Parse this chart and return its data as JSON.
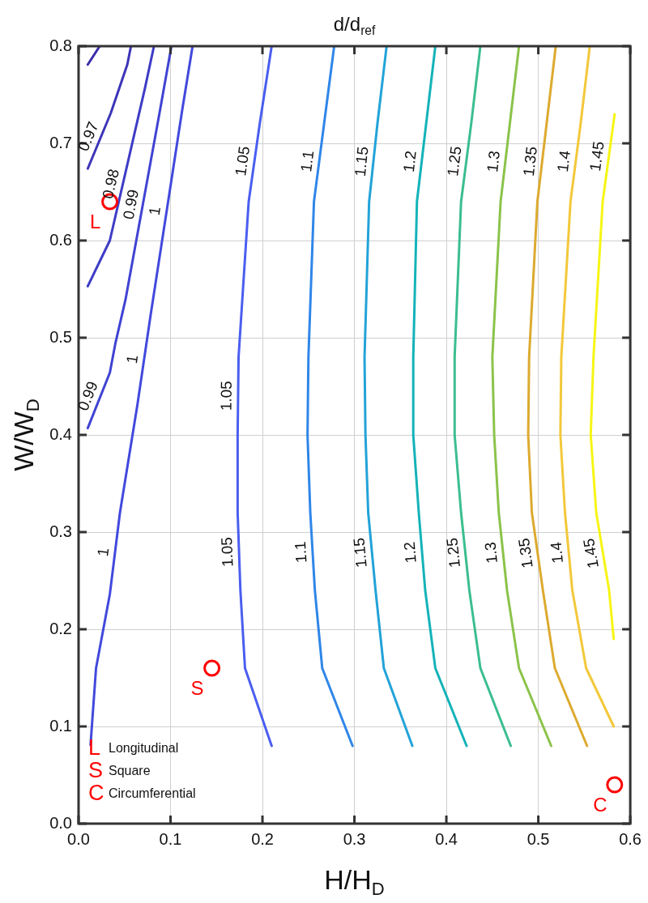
{
  "chart_data": {
    "type": "line",
    "title": "d/d$_{ref}$",
    "xlabel": "H/H$_{D}$",
    "ylabel": "W/W$_{D}$",
    "xlim": [
      0,
      0.6
    ],
    "xticks": [
      {
        "value": 0,
        "label": "0.0"
      },
      0.1,
      0.2,
      0.3,
      0.4,
      0.5,
      0.6
    ],
    "ylim": [
      0,
      0.8
    ],
    "yticks": [
      {
        "value": 0,
        "label": "0.0"
      },
      0.1,
      0.2,
      0.3,
      0.4,
      0.5,
      0.6,
      0.7,
      0.8
    ],
    "grid": true,
    "legend": "bottom left",
    "annotations": [
      "Longitudinal",
      "Square",
      "Circumferential"
    ],
    "series": [
      {
        "color": "#3b2ea8",
        "x": [
          0.01,
          0.023
        ],
        "values": [
          0.781,
          0.8
        ]
      },
      {
        "name": "0.97",
        "color": "#3d35b8",
        "x": [
          0.01,
          0.035,
          0.053,
          0.057
        ],
        "values": [
          0.674,
          0.731,
          0.781,
          0.8
        ]
      },
      {
        "name": "0.98",
        "color": "#3e3cc6",
        "x": [
          0.01,
          0.034,
          0.061,
          0.072,
          0.082
        ],
        "values": [
          0.553,
          0.6,
          0.711,
          0.756,
          0.8
        ]
      },
      {
        "name": "0.99",
        "color": "#4043d3",
        "x": [
          0.01,
          0.034,
          0.04,
          0.051,
          0.088,
          0.101
        ],
        "values": [
          0.407,
          0.464,
          0.494,
          0.539,
          0.731,
          0.8
        ]
      },
      {
        "name": "1",
        "color": "#4249dd",
        "x": [
          0.013,
          0.019,
          0.034,
          0.045,
          0.064,
          0.078,
          0.113,
          0.124
        ],
        "values": [
          0.081,
          0.16,
          0.236,
          0.32,
          0.431,
          0.521,
          0.736,
          0.8
        ]
      },
      {
        "name": "1.05",
        "color": "#4a5ef0",
        "x": [
          0.21,
          0.181,
          0.176,
          0.173,
          0.173,
          0.174,
          0.185,
          0.197,
          0.21
        ],
        "values": [
          0.08,
          0.16,
          0.24,
          0.32,
          0.4,
          0.48,
          0.64,
          0.72,
          0.8
        ]
      },
      {
        "name": "1.1",
        "color": "#2f86e8",
        "x": [
          0.298,
          0.265,
          0.257,
          0.252,
          0.249,
          0.25,
          0.256,
          0.267,
          0.278
        ],
        "values": [
          0.08,
          0.16,
          0.24,
          0.32,
          0.4,
          0.48,
          0.64,
          0.72,
          0.8
        ]
      },
      {
        "name": "1.15",
        "color": "#22a3d8",
        "x": [
          0.363,
          0.332,
          0.323,
          0.315,
          0.312,
          0.311,
          0.316,
          0.325,
          0.335
        ],
        "values": [
          0.08,
          0.16,
          0.24,
          0.32,
          0.4,
          0.48,
          0.64,
          0.72,
          0.8
        ]
      },
      {
        "name": "1.2",
        "color": "#13b3b9",
        "x": [
          0.422,
          0.388,
          0.377,
          0.37,
          0.364,
          0.364,
          0.368,
          0.378,
          0.388
        ],
        "values": [
          0.08,
          0.16,
          0.24,
          0.32,
          0.4,
          0.48,
          0.64,
          0.72,
          0.8
        ]
      },
      {
        "name": "1.25",
        "color": "#3bbe8f",
        "x": [
          0.47,
          0.437,
          0.425,
          0.416,
          0.409,
          0.409,
          0.416,
          0.427,
          0.437
        ],
        "values": [
          0.08,
          0.16,
          0.24,
          0.32,
          0.4,
          0.48,
          0.64,
          0.72,
          0.8
        ]
      },
      {
        "name": "1.3",
        "color": "#8bc34a",
        "x": [
          0.514,
          0.479,
          0.466,
          0.457,
          0.452,
          0.45,
          0.459,
          0.469,
          0.479
        ],
        "values": [
          0.08,
          0.16,
          0.24,
          0.32,
          0.4,
          0.48,
          0.64,
          0.72,
          0.8
        ]
      },
      {
        "name": "1.35",
        "color": "#dcaa2f",
        "x": [
          0.553,
          0.518,
          0.505,
          0.493,
          0.489,
          0.49,
          0.499,
          0.509,
          0.519
        ],
        "values": [
          0.08,
          0.16,
          0.24,
          0.32,
          0.4,
          0.48,
          0.64,
          0.72,
          0.8
        ]
      },
      {
        "name": "1.4",
        "color": "#f3c83a",
        "x": [
          0.582,
          0.552,
          0.537,
          0.529,
          0.524,
          0.525,
          0.535,
          0.546,
          0.556
        ],
        "values": [
          0.1,
          0.16,
          0.24,
          0.32,
          0.4,
          0.48,
          0.64,
          0.72,
          0.8
        ]
      },
      {
        "name": "1.45",
        "color": "#f6f514",
        "x": [
          0.582,
          0.577,
          0.563,
          0.557,
          0.56,
          0.57,
          0.583
        ],
        "values": [
          0.19,
          0.24,
          0.32,
          0.4,
          0.48,
          0.64,
          0.73
        ]
      },
      {
        "name": "L",
        "type": "scatter",
        "marker": "circle",
        "color": "#ff0000",
        "x": [
          0.034
        ],
        "values": [
          0.64
        ]
      },
      {
        "name": "S",
        "type": "scatter",
        "marker": "circle",
        "color": "#ff0000",
        "x": [
          0.145
        ],
        "values": [
          0.16
        ]
      },
      {
        "name": "C",
        "type": "scatter",
        "marker": "circle",
        "color": "#ff0000",
        "x": [
          0.583
        ],
        "values": [
          0.04
        ]
      }
    ]
  }
}
